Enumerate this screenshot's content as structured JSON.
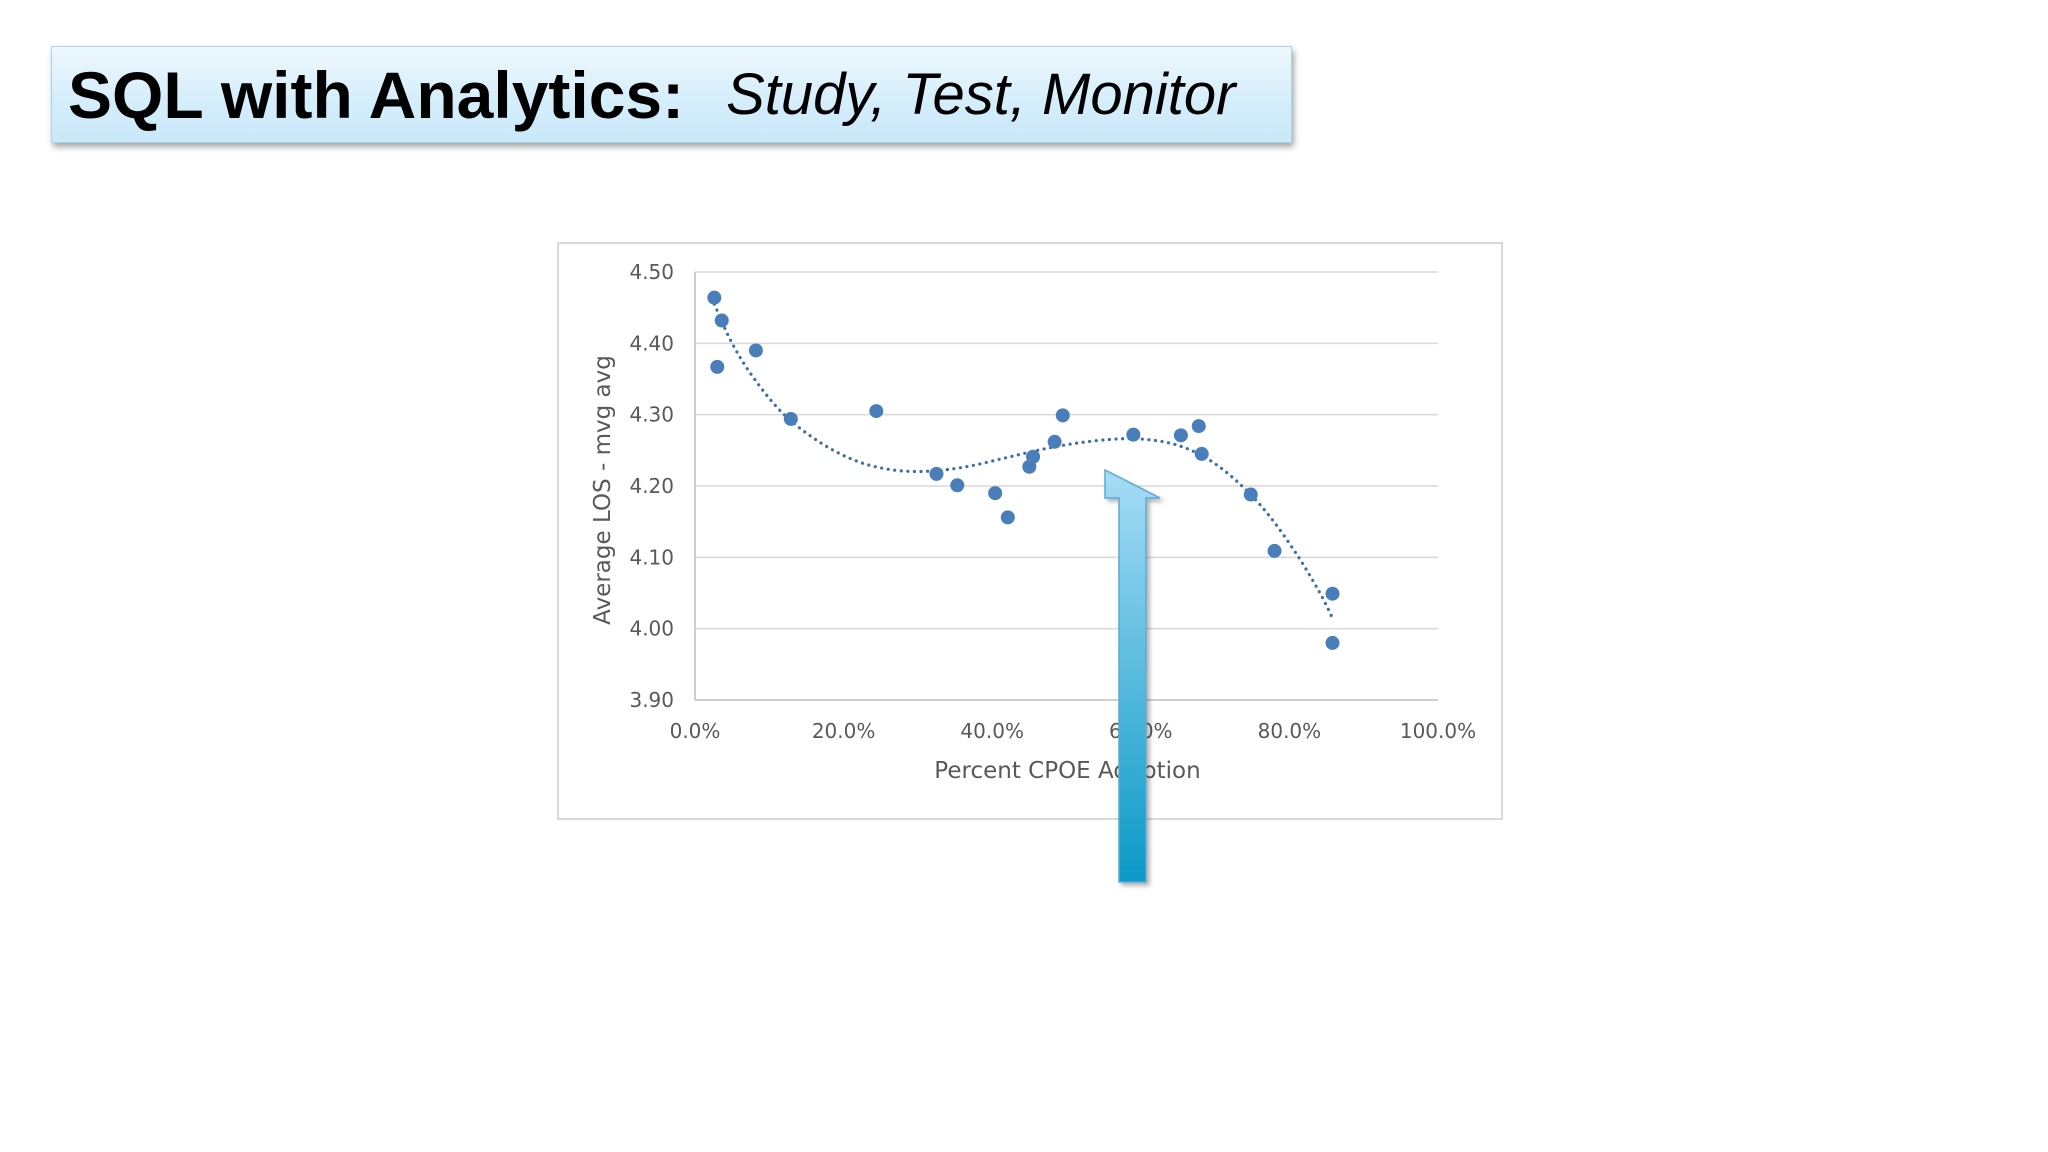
{
  "title": {
    "main": "SQL with Analytics:",
    "subtitle": "Study, Test, Monitor"
  },
  "colors": {
    "point": "#4a7ebb",
    "trendline": "#3d6fa3",
    "arrow_top": "#a6dcf6",
    "arrow_bottom": "#0b99c7",
    "title_bg": "#d6eefb"
  },
  "chart_data": {
    "type": "scatter",
    "xlabel": "Percent CPOE Adoption",
    "ylabel": "Average LOS - mvg avg",
    "xlim": [
      0,
      100
    ],
    "ylim": [
      3.9,
      4.5
    ],
    "x_ticks": [
      0,
      20,
      40,
      60,
      80,
      100
    ],
    "x_tick_labels": [
      "0.0%",
      "20.0%",
      "40.0%",
      "60.0%",
      "80.0%",
      "100.0%"
    ],
    "y_ticks": [
      3.9,
      4.0,
      4.1,
      4.2,
      4.3,
      4.4,
      4.5
    ],
    "y_tick_labels": [
      "3.90",
      "4.00",
      "4.10",
      "4.20",
      "4.30",
      "4.40",
      "4.50"
    ],
    "grid": "horizontal",
    "trendline": "polynomial (dotted)",
    "series": [
      {
        "points": [
          {
            "x": 2.6,
            "y": 4.464
          },
          {
            "x": 3.6,
            "y": 4.432
          },
          {
            "x": 3.0,
            "y": 4.367
          },
          {
            "x": 8.2,
            "y": 4.39
          },
          {
            "x": 12.9,
            "y": 4.294
          },
          {
            "x": 24.4,
            "y": 4.305
          },
          {
            "x": 32.5,
            "y": 4.217
          },
          {
            "x": 35.3,
            "y": 4.201
          },
          {
            "x": 40.4,
            "y": 4.19
          },
          {
            "x": 42.1,
            "y": 4.156
          },
          {
            "x": 45.0,
            "y": 4.227
          },
          {
            "x": 45.5,
            "y": 4.241
          },
          {
            "x": 48.4,
            "y": 4.262
          },
          {
            "x": 49.5,
            "y": 4.299
          },
          {
            "x": 59.0,
            "y": 4.272
          },
          {
            "x": 65.4,
            "y": 4.271
          },
          {
            "x": 67.8,
            "y": 4.284
          },
          {
            "x": 68.2,
            "y": 4.245
          },
          {
            "x": 74.8,
            "y": 4.188
          },
          {
            "x": 78.0,
            "y": 4.109
          },
          {
            "x": 85.8,
            "y": 4.049
          },
          {
            "x": 85.8,
            "y": 3.98
          }
        ],
        "trend": [
          {
            "x": 2.6,
            "y": 4.455
          },
          {
            "x": 5,
            "y": 4.4
          },
          {
            "x": 8,
            "y": 4.35
          },
          {
            "x": 12,
            "y": 4.3
          },
          {
            "x": 17,
            "y": 4.26
          },
          {
            "x": 22,
            "y": 4.234
          },
          {
            "x": 27,
            "y": 4.222
          },
          {
            "x": 32,
            "y": 4.221
          },
          {
            "x": 37,
            "y": 4.228
          },
          {
            "x": 42,
            "y": 4.24
          },
          {
            "x": 47,
            "y": 4.252
          },
          {
            "x": 52,
            "y": 4.261
          },
          {
            "x": 57,
            "y": 4.266
          },
          {
            "x": 61,
            "y": 4.265
          },
          {
            "x": 65,
            "y": 4.257
          },
          {
            "x": 69,
            "y": 4.238
          },
          {
            "x": 73,
            "y": 4.206
          },
          {
            "x": 77,
            "y": 4.162
          },
          {
            "x": 81,
            "y": 4.104
          },
          {
            "x": 84,
            "y": 4.052
          },
          {
            "x": 85.8,
            "y": 4.015
          }
        ]
      }
    ]
  }
}
